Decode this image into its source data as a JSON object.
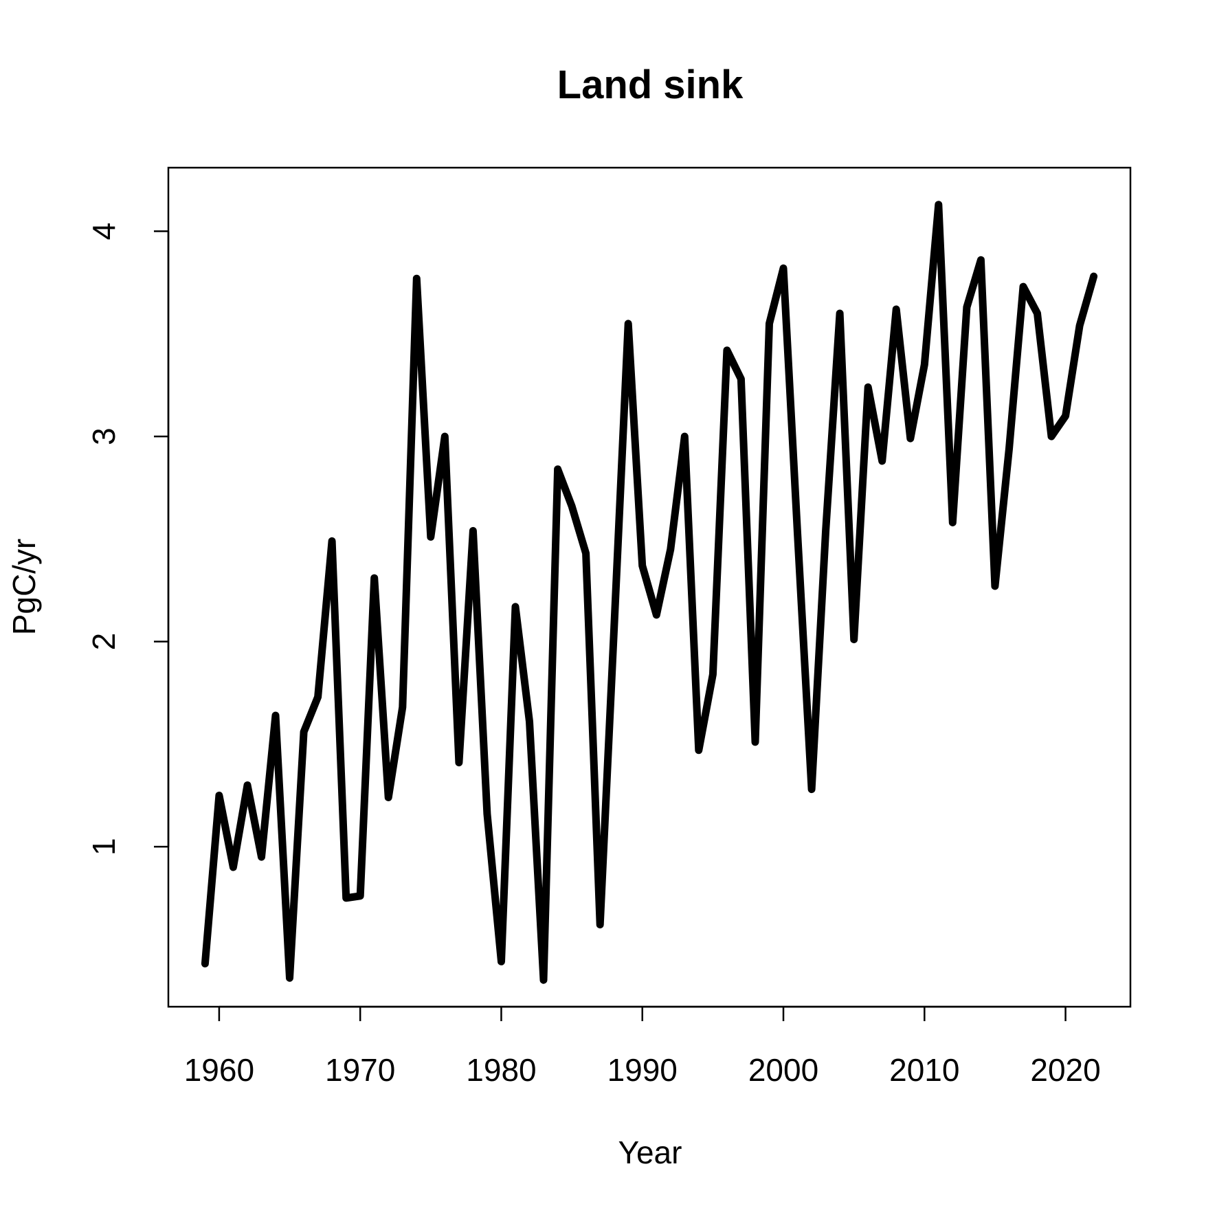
{
  "chart_data": {
    "type": "line",
    "title": "Land sink",
    "xlabel": "Year",
    "ylabel": "PgC/yr",
    "xlim": [
      1956.4,
      2024.6
    ],
    "ylim": [
      0.22,
      4.31
    ],
    "x_ticks": [
      1960,
      1970,
      1980,
      1990,
      2000,
      2010,
      2020
    ],
    "y_ticks": [
      1,
      2,
      3,
      4
    ],
    "grid": false,
    "legend": "none",
    "series": [
      {
        "color": "#000000",
        "x": [
          1959,
          1960,
          1961,
          1962,
          1963,
          1964,
          1965,
          1966,
          1967,
          1968,
          1969,
          1970,
          1971,
          1972,
          1973,
          1974,
          1975,
          1976,
          1977,
          1978,
          1979,
          1980,
          1981,
          1982,
          1983,
          1984,
          1985,
          1986,
          1987,
          1988,
          1989,
          1990,
          1991,
          1992,
          1993,
          1994,
          1995,
          1996,
          1997,
          1998,
          1999,
          2000,
          2001,
          2002,
          2003,
          2004,
          2005,
          2006,
          2007,
          2008,
          2009,
          2010,
          2011,
          2012,
          2013,
          2014,
          2015,
          2016,
          2017,
          2018,
          2019,
          2020,
          2021,
          2022
        ],
        "y": [
          0.43,
          1.25,
          0.9,
          1.3,
          0.95,
          1.64,
          0.36,
          1.56,
          1.73,
          2.49,
          0.75,
          0.76,
          2.31,
          1.24,
          1.68,
          3.77,
          2.51,
          3.0,
          1.41,
          2.54,
          1.16,
          0.44,
          2.17,
          1.61,
          0.35,
          2.84,
          2.66,
          2.43,
          0.62,
          2.07,
          3.55,
          2.37,
          2.13,
          2.45,
          3.0,
          1.47,
          1.84,
          3.42,
          3.28,
          1.51,
          3.55,
          3.82,
          2.53,
          1.28,
          2.54,
          3.6,
          2.01,
          3.24,
          2.88,
          3.62,
          2.99,
          3.35,
          4.13,
          2.58,
          3.63,
          3.86,
          2.27,
          2.94,
          3.73,
          3.6,
          3.0,
          3.1,
          3.54,
          3.78
        ]
      }
    ]
  }
}
